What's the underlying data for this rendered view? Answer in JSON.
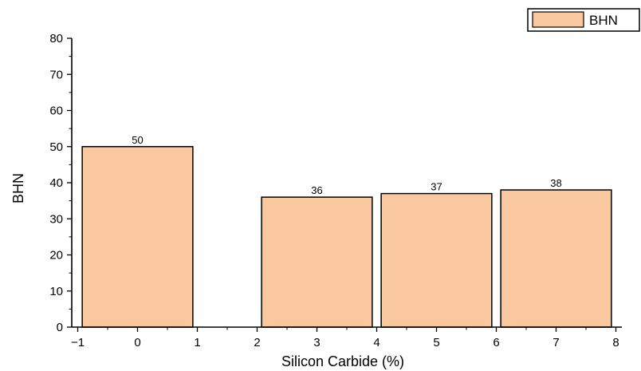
{
  "chart_data": {
    "type": "bar",
    "x": [
      0,
      3,
      5,
      7
    ],
    "bar_width": 1.85,
    "values": [
      50,
      36,
      37,
      38
    ],
    "data_labels": [
      "50",
      "36",
      "37",
      "38"
    ],
    "series": [
      {
        "name": "BHN",
        "values": [
          50,
          36,
          37,
          38
        ],
        "color": "#f9c89f"
      }
    ],
    "xlabel": "Silicon Carbide (%)",
    "ylabel": "BHN",
    "xlim": [
      -1.1,
      8.1
    ],
    "ylim": [
      0,
      80
    ],
    "xticks": [
      "−1",
      "0",
      "1",
      "2",
      "3",
      "4",
      "5",
      "6",
      "7",
      "8"
    ],
    "yticks": [
      "0",
      "10",
      "20",
      "30",
      "40",
      "50",
      "60",
      "70",
      "80"
    ],
    "grid": false,
    "legend": {
      "position": "top-right",
      "entries": [
        "BHN"
      ]
    },
    "colors": {
      "bar_fill": "#f9c89f",
      "bar_stroke": "#000000",
      "axis": "#000000"
    }
  }
}
